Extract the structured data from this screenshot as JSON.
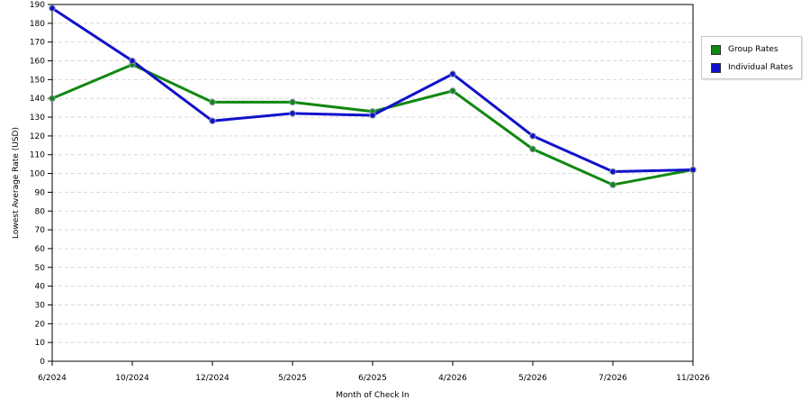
{
  "chart_data": {
    "type": "line",
    "title": "",
    "xlabel": "Month of Check In",
    "ylabel": "Lowest Average Rate (USD)",
    "ylim": [
      0,
      190
    ],
    "ytick_step": 10,
    "grid": true,
    "legend_position": "right",
    "categories": [
      "6/2024",
      "10/2024",
      "12/2024",
      "5/2025",
      "6/2025",
      "4/2026",
      "5/2026",
      "7/2026",
      "11/2026"
    ],
    "series": [
      {
        "name": "Group Rates",
        "color": "#118811",
        "values": [
          140,
          158,
          138,
          138,
          133,
          144,
          113,
          94,
          102
        ]
      },
      {
        "name": "Individual Rates",
        "color": "#1111cc",
        "values": [
          188,
          160,
          128,
          132,
          131,
          153,
          120,
          101,
          102
        ]
      }
    ]
  }
}
